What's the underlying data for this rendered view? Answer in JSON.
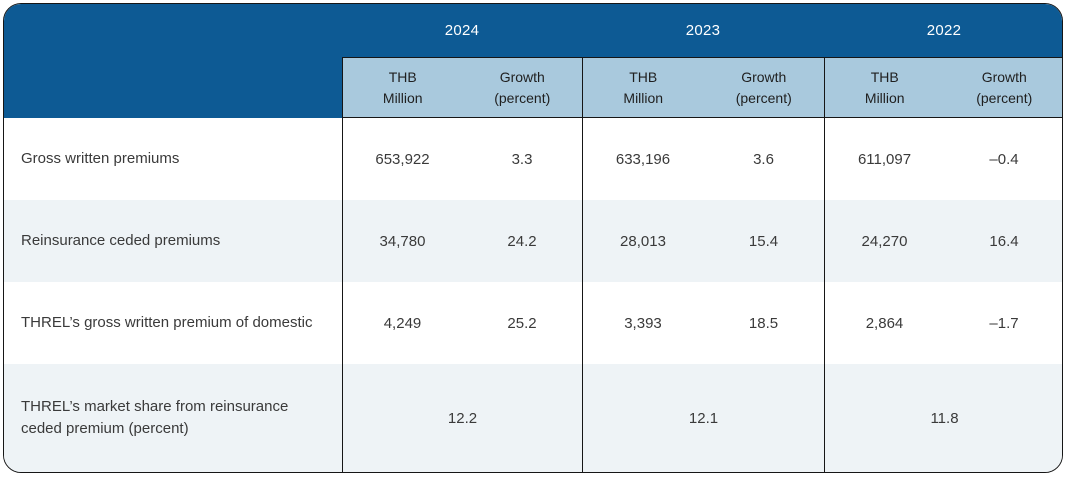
{
  "table": {
    "years": [
      "2024",
      "2023",
      "2022"
    ],
    "subheader": {
      "thb": "THB\nMillion",
      "growth": "Growth\n(percent)"
    },
    "rows": [
      {
        "label": "Gross written premiums",
        "cells": [
          {
            "thb": "653,922",
            "growth": "3.3"
          },
          {
            "thb": "633,196",
            "growth": "3.6"
          },
          {
            "thb": "611,097",
            "growth": "–0.4"
          }
        ]
      },
      {
        "label": "Reinsurance ceded premiums",
        "cells": [
          {
            "thb": "34,780",
            "growth": "24.2"
          },
          {
            "thb": "28,013",
            "growth": "15.4"
          },
          {
            "thb": "24,270",
            "growth": "16.4"
          }
        ]
      },
      {
        "label": "THREL’s gross written premium of domestic",
        "cells": [
          {
            "thb": "4,249",
            "growth": "25.2"
          },
          {
            "thb": "3,393",
            "growth": "18.5"
          },
          {
            "thb": "2,864",
            "growth": "–1.7"
          }
        ]
      },
      {
        "label": "THREL’s market share from reinsurance ceded premium (percent)",
        "spans": [
          "12.2",
          "12.1",
          "11.8"
        ]
      }
    ],
    "colors": {
      "header_bg": "#0d5a94",
      "subheader_bg": "#a9c9dd",
      "row_alt_bg": "#eef3f6",
      "border": "#161616"
    }
  },
  "chart_data": {
    "type": "table",
    "column_groups": [
      "2024",
      "2023",
      "2022"
    ],
    "sub_columns": [
      "THB Million",
      "Growth (percent)"
    ],
    "rows": [
      {
        "label": "Gross written premiums",
        "values": [
          653922,
          3.3,
          633196,
          3.6,
          611097,
          -0.4
        ]
      },
      {
        "label": "Reinsurance ceded premiums",
        "values": [
          34780,
          24.2,
          28013,
          15.4,
          24270,
          16.4
        ]
      },
      {
        "label": "THREL’s gross written premium of domestic",
        "values": [
          4249,
          25.2,
          3393,
          18.5,
          2864,
          -1.7
        ]
      },
      {
        "label": "THREL’s market share from reinsurance ceded premium (percent)",
        "values": [
          12.2,
          12.1,
          11.8
        ]
      }
    ]
  }
}
